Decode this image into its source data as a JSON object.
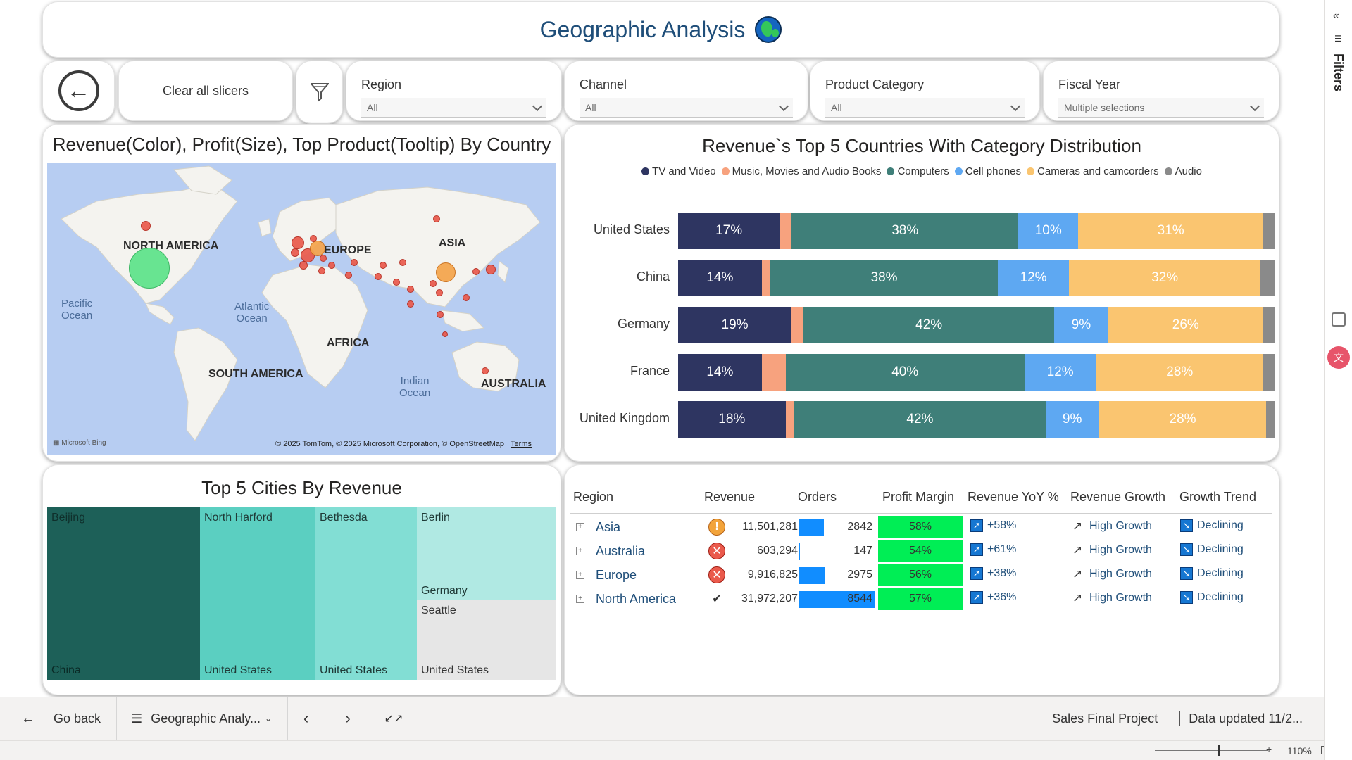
{
  "page": {
    "title": "Geographic Analysis"
  },
  "slicers": {
    "clear_label": "Clear all slicers",
    "items": [
      {
        "label": "Region",
        "value": "All"
      },
      {
        "label": "Channel",
        "value": "All"
      },
      {
        "label": "Product Category",
        "value": "All"
      },
      {
        "label": "Fiscal Year",
        "value": "Multiple selections"
      }
    ]
  },
  "map": {
    "title": "Revenue(Color), Profit(Size), Top Product(Tooltip) By Country",
    "labels": {
      "north_america": "NORTH AMERICA",
      "europe": "EUROPE",
      "asia": "ASIA",
      "africa": "AFRICA",
      "south_america": "SOUTH AMERICA",
      "australia": "AUSTRALIA",
      "pacific": "Pacific\nOcean",
      "atlantic": "Atlantic\nOcean",
      "indian": "Indian\nOcean"
    },
    "credit": "© 2025 TomTom, © 2025 Microsoft Corporation, © OpenStreetMap",
    "terms": "Terms",
    "bing": "Microsoft Bing"
  },
  "bar_chart_title": "Revenue`s Top 5 Countries With Category Distribution",
  "chart_data": {
    "type": "bar",
    "orientation": "horizontal",
    "stacked": "100%",
    "categories": [
      "United States",
      "China",
      "Germany",
      "France",
      "United Kingdom"
    ],
    "series": [
      {
        "name": "TV and Video",
        "color": "#2e3561",
        "values": [
          17,
          14,
          19,
          14,
          18
        ]
      },
      {
        "name": "Music, Movies and Audio Books",
        "color": "#f7a27e",
        "values": [
          2,
          1.5,
          2,
          4,
          1.5
        ]
      },
      {
        "name": "Computers",
        "color": "#3f7f79",
        "values": [
          38,
          38,
          42,
          40,
          42
        ]
      },
      {
        "name": "Cell phones",
        "color": "#5ea8f2",
        "values": [
          10,
          12,
          9,
          12,
          9
        ]
      },
      {
        "name": "Cameras and camcorders",
        "color": "#fac570",
        "values": [
          31,
          32,
          26,
          28,
          28
        ]
      },
      {
        "name": "Audio",
        "color": "#8a8a8a",
        "values": [
          2,
          2.5,
          2,
          2,
          1.5
        ]
      }
    ],
    "data_labels": [
      [
        "17%",
        "",
        "38%",
        "10%",
        "31%",
        ""
      ],
      [
        "14%",
        "",
        "38%",
        "12%",
        "32%",
        ""
      ],
      [
        "19%",
        "",
        "42%",
        "9%",
        "26%",
        ""
      ],
      [
        "14%",
        "",
        "40%",
        "12%",
        "28%",
        ""
      ],
      [
        "18%",
        "",
        "42%",
        "9%",
        "28%",
        ""
      ]
    ],
    "legend_position": "top-center"
  },
  "treemap": {
    "title": "Top 5 Cities By Revenue",
    "tiles": [
      {
        "city": "Beijing",
        "country": "China"
      },
      {
        "city": "North Harford",
        "country": "United States"
      },
      {
        "city": "Bethesda",
        "country": "United States"
      },
      {
        "city": "Berlin",
        "country": "Germany"
      },
      {
        "city": "Seattle",
        "country": "United States"
      }
    ]
  },
  "matrix": {
    "headers": [
      "Region",
      "Revenue",
      "Orders",
      "Profit Margin",
      "Revenue YoY %",
      "Revenue Growth",
      "Growth Trend"
    ],
    "rows": [
      {
        "region": "Asia",
        "status": "warning",
        "revenue": "11,501,281",
        "orders": "2842",
        "orders_fraction": 0.33,
        "margin": "58%",
        "yoy": "+58%",
        "growth": "High Growth",
        "trend": "Declining"
      },
      {
        "region": "Australia",
        "status": "error",
        "revenue": "603,294",
        "orders": "147",
        "orders_fraction": 0.02,
        "margin": "54%",
        "yoy": "+61%",
        "growth": "High Growth",
        "trend": "Declining"
      },
      {
        "region": "Europe",
        "status": "error",
        "revenue": "9,916,825",
        "orders": "2975",
        "orders_fraction": 0.35,
        "margin": "56%",
        "yoy": "+38%",
        "growth": "High Growth",
        "trend": "Declining"
      },
      {
        "region": "North America",
        "status": "ok",
        "revenue": "31,972,207",
        "orders": "8544",
        "orders_fraction": 1.0,
        "margin": "57%",
        "yoy": "+36%",
        "growth": "High Growth",
        "trend": "Declining"
      }
    ]
  },
  "footer": {
    "go_back": "Go back",
    "page_name": "Geographic Analy...",
    "report_name": "Sales Final Project",
    "data_updated": "Data updated 11/2...",
    "zoom": "110%",
    "filters_label": "Filters"
  }
}
